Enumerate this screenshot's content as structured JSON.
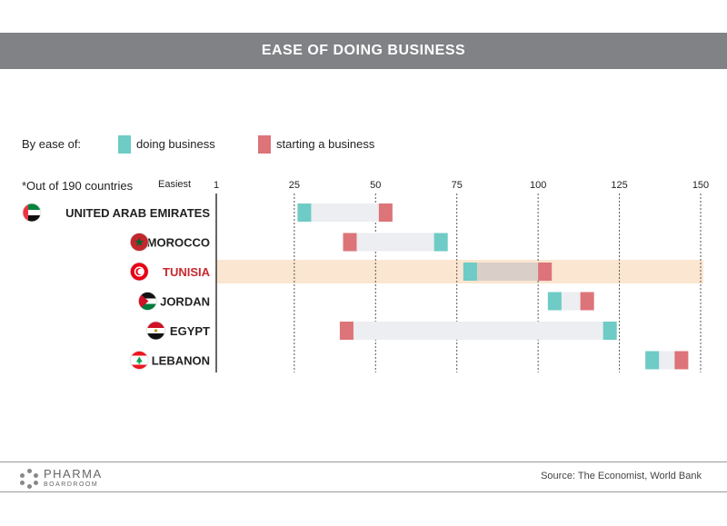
{
  "title": "EASE OF DOING BUSINESS",
  "legend": {
    "prefix": "By ease of:",
    "items": [
      {
        "label": "doing business",
        "color": "#6ecbc5"
      },
      {
        "label": "starting a business",
        "color": "#dc7479"
      }
    ]
  },
  "note": "*Out of 190 countries",
  "easiest_label": "Easiest",
  "colors": {
    "doing": "#6ecbc5",
    "starting": "#dc7479",
    "range": "#eceef1",
    "highlight": "#fbe6d1",
    "highlight_text": "#c8282f",
    "label_text": "#222222"
  },
  "chart_data": {
    "type": "bar",
    "subtype": "range dumbbell",
    "xlim": [
      1,
      150
    ],
    "ticks": [
      1,
      25,
      50,
      75,
      100,
      125,
      150
    ],
    "gridlines": [
      25,
      50,
      75,
      100,
      125,
      150
    ],
    "series": [
      {
        "name": "doing business",
        "values": [
          26,
          68,
          77,
          103,
          120,
          133
        ]
      },
      {
        "name": "starting a business",
        "values": [
          51,
          40,
          100,
          113,
          39,
          142
        ]
      }
    ],
    "categories": [
      "UNITED ARAB EMIRATES",
      "MOROCCO",
      "TUNISIA",
      "JORDAN",
      "EGYPT",
      "LEBANON"
    ],
    "highlighted": "TUNISIA"
  },
  "rows": [
    {
      "country": "UNITED ARAB EMIRATES",
      "flag": "uae-flag-icon"
    },
    {
      "country": "MOROCCO",
      "flag": "morocco-flag-icon"
    },
    {
      "country": "TUNISIA",
      "flag": "tunisia-flag-icon"
    },
    {
      "country": "JORDAN",
      "flag": "jordan-flag-icon"
    },
    {
      "country": "EGYPT",
      "flag": "egypt-flag-icon"
    },
    {
      "country": "LEBANON",
      "flag": "lebanon-flag-icon"
    }
  ],
  "footer": {
    "logo_main": "PHARMA",
    "logo_sub": "BOARDROOM",
    "source": "Source: The Economist, World Bank"
  }
}
